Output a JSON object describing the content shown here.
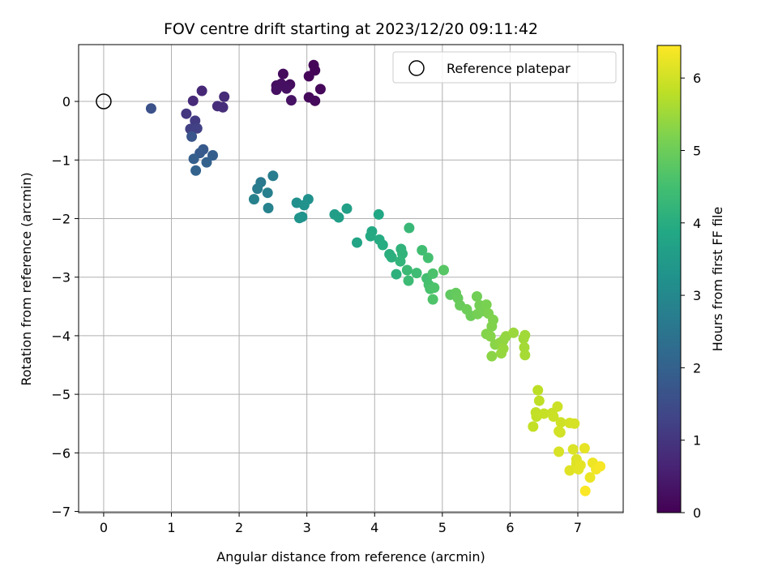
{
  "chart_data": {
    "type": "scatter",
    "title": "FOV centre drift starting at 2023/12/20 09:11:42",
    "xlabel": "Angular distance from reference (arcmin)",
    "ylabel": "Rotation from reference (arcmin)",
    "xlim": [
      -0.37,
      7.67
    ],
    "ylim": [
      -7.02,
      0.97
    ],
    "xticks": [
      0,
      1,
      2,
      3,
      4,
      5,
      6,
      7
    ],
    "yticks": [
      0,
      -1,
      -2,
      -3,
      -4,
      -5,
      -6,
      -7
    ],
    "xtick_labels": [
      "0",
      "1",
      "2",
      "3",
      "4",
      "5",
      "6",
      "7"
    ],
    "ytick_labels": [
      "0",
      "−1",
      "−2",
      "−3",
      "−4",
      "−5",
      "−6",
      "−7"
    ],
    "grid": true,
    "legend": {
      "position": "top-right",
      "entries": [
        "Reference platepar"
      ]
    },
    "reference_point": {
      "x": 0,
      "y": 0,
      "marker": "open-circle",
      "label": "Reference platepar"
    },
    "colorbar": {
      "label": "Hours from first FF file",
      "range": [
        0,
        6.45
      ],
      "ticks": [
        0,
        1,
        2,
        3,
        4,
        5,
        6
      ],
      "tick_labels": [
        "0",
        "1",
        "2",
        "3",
        "4",
        "5",
        "6"
      ],
      "colormap": "viridis"
    },
    "points": [
      {
        "x": 3.1,
        "y": 0.62,
        "c": 0.05
      },
      {
        "x": 3.12,
        "y": 0.53,
        "c": 0.08
      },
      {
        "x": 3.03,
        "y": 0.43,
        "c": 0.1
      },
      {
        "x": 3.2,
        "y": 0.21,
        "c": 0.12
      },
      {
        "x": 3.03,
        "y": 0.07,
        "c": 0.14
      },
      {
        "x": 3.12,
        "y": 0.01,
        "c": 0.16
      },
      {
        "x": 2.65,
        "y": 0.47,
        "c": 0.2
      },
      {
        "x": 2.75,
        "y": 0.29,
        "c": 0.22
      },
      {
        "x": 2.55,
        "y": 0.27,
        "c": 0.24
      },
      {
        "x": 2.62,
        "y": 0.3,
        "c": 0.26
      },
      {
        "x": 2.7,
        "y": 0.22,
        "c": 0.28
      },
      {
        "x": 2.55,
        "y": 0.2,
        "c": 0.3
      },
      {
        "x": 2.77,
        "y": 0.02,
        "c": 0.32
      },
      {
        "x": 1.45,
        "y": 0.18,
        "c": 0.72
      },
      {
        "x": 1.32,
        "y": 0.01,
        "c": 0.76
      },
      {
        "x": 1.78,
        "y": 0.08,
        "c": 0.8
      },
      {
        "x": 1.68,
        "y": -0.08,
        "c": 0.82
      },
      {
        "x": 1.76,
        "y": -0.1,
        "c": 0.84
      },
      {
        "x": 1.22,
        "y": -0.21,
        "c": 1.0
      },
      {
        "x": 1.35,
        "y": -0.33,
        "c": 1.1
      },
      {
        "x": 1.28,
        "y": -0.47,
        "c": 1.2
      },
      {
        "x": 1.38,
        "y": -0.46,
        "c": 1.22
      },
      {
        "x": 0.7,
        "y": -0.12,
        "c": 1.6
      },
      {
        "x": 1.3,
        "y": -0.6,
        "c": 1.7
      },
      {
        "x": 1.47,
        "y": -0.82,
        "c": 1.8
      },
      {
        "x": 1.42,
        "y": -0.88,
        "c": 1.85
      },
      {
        "x": 1.61,
        "y": -0.92,
        "c": 1.9
      },
      {
        "x": 1.33,
        "y": -0.98,
        "c": 1.95
      },
      {
        "x": 1.52,
        "y": -1.04,
        "c": 2.0
      },
      {
        "x": 1.36,
        "y": -1.18,
        "c": 2.05
      },
      {
        "x": 2.32,
        "y": -1.38,
        "c": 2.6
      },
      {
        "x": 2.27,
        "y": -1.49,
        "c": 2.65
      },
      {
        "x": 2.5,
        "y": -1.27,
        "c": 2.7
      },
      {
        "x": 2.42,
        "y": -1.56,
        "c": 2.75
      },
      {
        "x": 2.22,
        "y": -1.67,
        "c": 2.8
      },
      {
        "x": 2.43,
        "y": -1.82,
        "c": 2.85
      },
      {
        "x": 2.85,
        "y": -1.73,
        "c": 3.2
      },
      {
        "x": 3.02,
        "y": -1.67,
        "c": 3.22
      },
      {
        "x": 2.96,
        "y": -1.77,
        "c": 3.25
      },
      {
        "x": 2.89,
        "y": -1.99,
        "c": 3.3
      },
      {
        "x": 2.93,
        "y": -1.97,
        "c": 3.32
      },
      {
        "x": 3.41,
        "y": -1.93,
        "c": 3.55
      },
      {
        "x": 3.47,
        "y": -1.98,
        "c": 3.6
      },
      {
        "x": 3.59,
        "y": -1.83,
        "c": 3.65
      },
      {
        "x": 3.74,
        "y": -2.41,
        "c": 3.75
      },
      {
        "x": 4.06,
        "y": -1.93,
        "c": 3.85
      },
      {
        "x": 3.96,
        "y": -2.22,
        "c": 3.88
      },
      {
        "x": 3.94,
        "y": -2.3,
        "c": 3.9
      },
      {
        "x": 4.07,
        "y": -2.36,
        "c": 3.95
      },
      {
        "x": 4.12,
        "y": -2.45,
        "c": 3.98
      },
      {
        "x": 4.22,
        "y": -2.61,
        "c": 4.05
      },
      {
        "x": 4.25,
        "y": -2.66,
        "c": 4.08
      },
      {
        "x": 4.32,
        "y": -2.95,
        "c": 4.1
      },
      {
        "x": 4.39,
        "y": -2.52,
        "c": 4.15
      },
      {
        "x": 4.41,
        "y": -2.6,
        "c": 4.18
      },
      {
        "x": 4.38,
        "y": -2.73,
        "c": 4.2
      },
      {
        "x": 4.51,
        "y": -2.16,
        "c": 4.3
      },
      {
        "x": 4.48,
        "y": -2.88,
        "c": 4.35
      },
      {
        "x": 4.5,
        "y": -3.06,
        "c": 4.38
      },
      {
        "x": 4.62,
        "y": -2.93,
        "c": 4.42
      },
      {
        "x": 4.7,
        "y": -2.54,
        "c": 4.45
      },
      {
        "x": 4.77,
        "y": -3.02,
        "c": 4.5
      },
      {
        "x": 4.79,
        "y": -2.67,
        "c": 4.52
      },
      {
        "x": 4.8,
        "y": -3.13,
        "c": 4.55
      },
      {
        "x": 4.82,
        "y": -3.2,
        "c": 4.58
      },
      {
        "x": 4.86,
        "y": -2.94,
        "c": 4.6
      },
      {
        "x": 4.88,
        "y": -3.18,
        "c": 4.62
      },
      {
        "x": 4.86,
        "y": -3.38,
        "c": 4.65
      },
      {
        "x": 5.02,
        "y": -2.88,
        "c": 4.75
      },
      {
        "x": 5.12,
        "y": -3.3,
        "c": 4.85
      },
      {
        "x": 5.2,
        "y": -3.27,
        "c": 4.9
      },
      {
        "x": 5.23,
        "y": -3.36,
        "c": 4.92
      },
      {
        "x": 5.26,
        "y": -3.48,
        "c": 4.95
      },
      {
        "x": 5.36,
        "y": -3.55,
        "c": 5.0
      },
      {
        "x": 5.42,
        "y": -3.66,
        "c": 5.02
      },
      {
        "x": 5.51,
        "y": -3.33,
        "c": 5.05
      },
      {
        "x": 5.55,
        "y": -3.48,
        "c": 5.08
      },
      {
        "x": 5.52,
        "y": -3.63,
        "c": 5.1
      },
      {
        "x": 5.6,
        "y": -3.58,
        "c": 5.12
      },
      {
        "x": 5.65,
        "y": -3.47,
        "c": 5.15
      },
      {
        "x": 5.68,
        "y": -3.62,
        "c": 5.18
      },
      {
        "x": 5.75,
        "y": -3.73,
        "c": 5.2
      },
      {
        "x": 5.73,
        "y": -3.84,
        "c": 5.22
      },
      {
        "x": 5.65,
        "y": -3.97,
        "c": 5.25
      },
      {
        "x": 5.71,
        "y": -4.01,
        "c": 5.28
      },
      {
        "x": 5.78,
        "y": -4.15,
        "c": 5.3
      },
      {
        "x": 5.73,
        "y": -4.35,
        "c": 5.32
      },
      {
        "x": 5.85,
        "y": -4.12,
        "c": 5.35
      },
      {
        "x": 5.9,
        "y": -4.08,
        "c": 5.38
      },
      {
        "x": 5.94,
        "y": -4.01,
        "c": 5.4
      },
      {
        "x": 5.87,
        "y": -4.3,
        "c": 5.42
      },
      {
        "x": 5.9,
        "y": -4.22,
        "c": 5.44
      },
      {
        "x": 6.05,
        "y": -3.95,
        "c": 5.48
      },
      {
        "x": 6.2,
        "y": -4.05,
        "c": 5.52
      },
      {
        "x": 6.22,
        "y": -3.99,
        "c": 5.54
      },
      {
        "x": 6.21,
        "y": -4.2,
        "c": 5.56
      },
      {
        "x": 6.22,
        "y": -4.33,
        "c": 5.58
      },
      {
        "x": 6.41,
        "y": -4.93,
        "c": 5.8
      },
      {
        "x": 6.43,
        "y": -5.11,
        "c": 5.82
      },
      {
        "x": 6.38,
        "y": -5.31,
        "c": 5.84
      },
      {
        "x": 6.39,
        "y": -5.38,
        "c": 5.86
      },
      {
        "x": 6.34,
        "y": -5.55,
        "c": 5.88
      },
      {
        "x": 6.5,
        "y": -5.33,
        "c": 5.9
      },
      {
        "x": 6.62,
        "y": -5.32,
        "c": 5.92
      },
      {
        "x": 6.64,
        "y": -5.38,
        "c": 5.94
      },
      {
        "x": 6.7,
        "y": -5.21,
        "c": 5.96
      },
      {
        "x": 6.75,
        "y": -5.48,
        "c": 5.98
      },
      {
        "x": 6.74,
        "y": -5.65,
        "c": 6.0
      },
      {
        "x": 6.72,
        "y": -5.63,
        "c": 6.02
      },
      {
        "x": 6.88,
        "y": -5.49,
        "c": 6.04
      },
      {
        "x": 6.95,
        "y": -5.5,
        "c": 6.06
      },
      {
        "x": 6.72,
        "y": -5.98,
        "c": 6.08
      },
      {
        "x": 6.93,
        "y": -5.94,
        "c": 6.1
      },
      {
        "x": 6.98,
        "y": -6.11,
        "c": 6.12
      },
      {
        "x": 6.98,
        "y": -6.18,
        "c": 6.14
      },
      {
        "x": 6.88,
        "y": -6.3,
        "c": 6.16
      },
      {
        "x": 7.01,
        "y": -6.28,
        "c": 6.18
      },
      {
        "x": 7.04,
        "y": -6.21,
        "c": 6.2
      },
      {
        "x": 7.1,
        "y": -5.92,
        "c": 6.22
      },
      {
        "x": 7.18,
        "y": -6.42,
        "c": 6.26
      },
      {
        "x": 7.22,
        "y": -6.17,
        "c": 6.3
      },
      {
        "x": 7.27,
        "y": -6.28,
        "c": 6.34
      },
      {
        "x": 7.33,
        "y": -6.23,
        "c": 6.38
      },
      {
        "x": 7.11,
        "y": -6.65,
        "c": 6.42
      }
    ]
  }
}
